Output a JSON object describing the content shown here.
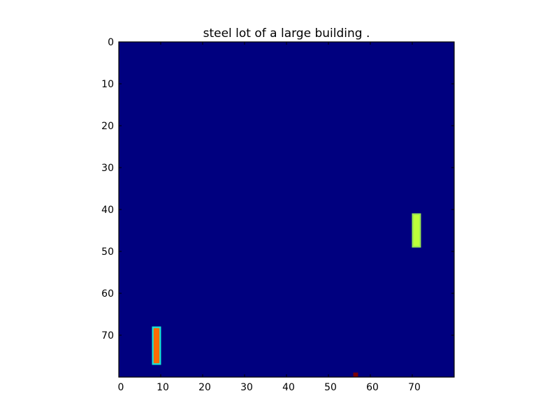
{
  "chart_data": {
    "type": "heatmap",
    "title": "steel lot of a large building .",
    "xlabel": "",
    "ylabel": "",
    "grid": false,
    "xlim": [
      0,
      80
    ],
    "ylim": [
      80,
      0
    ],
    "x_ticks": [
      "0",
      "10",
      "20",
      "30",
      "40",
      "50",
      "60",
      "70"
    ],
    "y_ticks": [
      "0",
      "10",
      "20",
      "30",
      "40",
      "50",
      "60",
      "70"
    ],
    "colormap": "jet",
    "background_value": 0.0,
    "background_color": "#00007f",
    "regions": [
      {
        "x": [
          8,
          9
        ],
        "y": [
          68,
          76
        ],
        "value": 0.8,
        "color": "#ff6a00",
        "edge_color": "#19ffe0"
      },
      {
        "x": [
          70,
          71
        ],
        "y": [
          41,
          48
        ],
        "value": 0.62,
        "color": "#bdff3a",
        "edge_color": "#a8ff4e"
      },
      {
        "x": [
          56,
          56
        ],
        "y": [
          79,
          79
        ],
        "value": 1.0,
        "color": "#7f0000",
        "edge_color": "#7f0000"
      }
    ]
  }
}
